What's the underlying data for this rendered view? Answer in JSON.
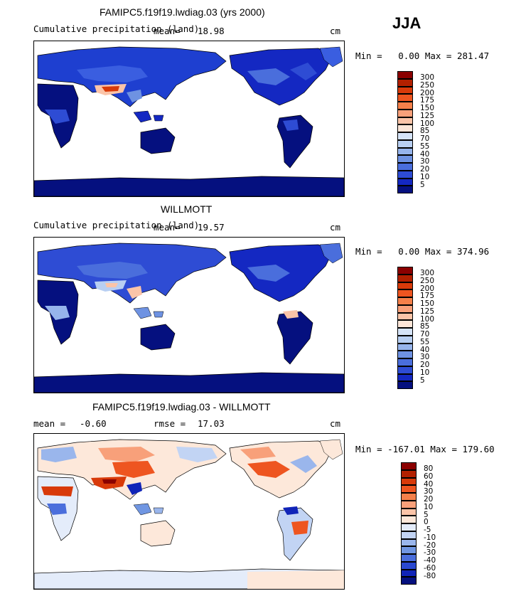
{
  "season": "JJA",
  "panels": [
    {
      "title": "FAMIPC5.f19f19.lwdiag.03 (yrs 2000)",
      "subtitle": "Cumulative precipitation (land)",
      "mean_label": "mean=",
      "mean_value": "18.98",
      "units": "cm",
      "minmax": "Min =   0.00 Max = 281.47",
      "colorbar": {
        "labels": [
          "300",
          "250",
          "200",
          "175",
          "150",
          "125",
          "100",
          "85",
          "70",
          "55",
          "40",
          "30",
          "20",
          "10",
          "5"
        ],
        "colors": [
          "#8B0000",
          "#B22000",
          "#D83A0A",
          "#EE5520",
          "#F5804A",
          "#F8A07A",
          "#FBC4A8",
          "#FCE6D8",
          "#D6E4F8",
          "#B8CFF2",
          "#96B4EC",
          "#6E92E2",
          "#4A6EDC",
          "#2E4CD4",
          "#1428C2",
          "#05107F"
        ]
      }
    },
    {
      "title": "WILLMOTT",
      "subtitle": "Cumulative precipitation (land)",
      "mean_label": "mean=",
      "mean_value": "19.57",
      "units": "cm",
      "minmax": "Min =   0.00 Max = 374.96",
      "colorbar": {
        "labels": [
          "300",
          "250",
          "200",
          "175",
          "150",
          "125",
          "100",
          "85",
          "70",
          "55",
          "40",
          "30",
          "20",
          "10",
          "5"
        ],
        "colors": [
          "#8B0000",
          "#B22000",
          "#D83A0A",
          "#EE5520",
          "#F5804A",
          "#F8A07A",
          "#FBC4A8",
          "#FCE6D8",
          "#D6E4F8",
          "#B8CFF2",
          "#96B4EC",
          "#6E92E2",
          "#4A6EDC",
          "#2E4CD4",
          "#1428C2",
          "#05107F"
        ]
      }
    },
    {
      "title": "FAMIPC5.f19f19.lwdiag.03 - WILLMOTT",
      "mean_label": "mean =",
      "mean_value": "-0.60",
      "rmse_label": "rmse =",
      "rmse_value": "17.03",
      "units": "cm",
      "minmax": "Min = -167.01 Max = 179.60",
      "colorbar": {
        "labels": [
          "80",
          "60",
          "40",
          "30",
          "20",
          "10",
          "5",
          "0",
          "-5",
          "-10",
          "-20",
          "-30",
          "-40",
          "-60",
          "-80"
        ],
        "colors": [
          "#8B0000",
          "#B22000",
          "#D83A0A",
          "#EE5520",
          "#F5804A",
          "#F8A07A",
          "#FBC4A8",
          "#FDE8DA",
          "#E4ECFA",
          "#C2D4F4",
          "#9AB6EC",
          "#7096E2",
          "#4A6EDC",
          "#2A48D0",
          "#1024B8",
          "#05107F"
        ]
      }
    }
  ],
  "chart_data": [
    {
      "type": "heatmap",
      "title": "FAMIPC5.f19f19.lwdiag.03 (yrs 2000)",
      "subtitle": "Cumulative precipitation (land)",
      "season": "JJA",
      "units": "cm",
      "mean": 18.98,
      "min": 0.0,
      "max": 281.47,
      "levels": [
        5,
        10,
        20,
        30,
        40,
        55,
        70,
        85,
        100,
        125,
        150,
        175,
        200,
        250,
        300
      ]
    },
    {
      "type": "heatmap",
      "title": "WILLMOTT",
      "subtitle": "Cumulative precipitation (land)",
      "season": "JJA",
      "units": "cm",
      "mean": 19.57,
      "min": 0.0,
      "max": 374.96,
      "levels": [
        5,
        10,
        20,
        30,
        40,
        55,
        70,
        85,
        100,
        125,
        150,
        175,
        200,
        250,
        300
      ]
    },
    {
      "type": "heatmap",
      "title": "FAMIPC5.f19f19.lwdiag.03 - WILLMOTT",
      "season": "JJA",
      "units": "cm",
      "mean": -0.6,
      "rmse": 17.03,
      "min": -167.01,
      "max": 179.6,
      "levels": [
        -80,
        -60,
        -40,
        -30,
        -20,
        -10,
        -5,
        0,
        5,
        10,
        20,
        30,
        40,
        60,
        80
      ]
    }
  ]
}
